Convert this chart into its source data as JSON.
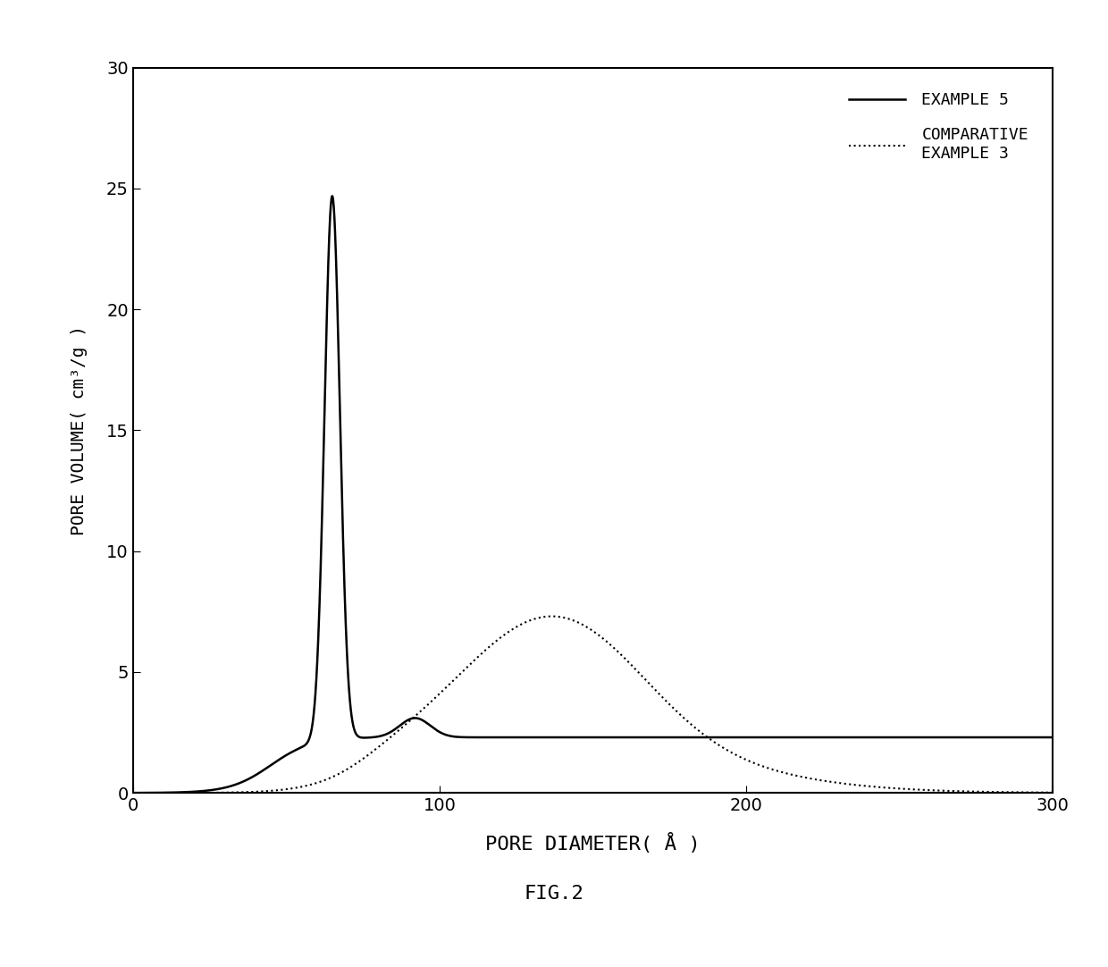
{
  "title": "",
  "xlabel": "PORE DIAMETER( Å )",
  "ylabel": "PORE VOLUME( cm³/g )",
  "xlim": [
    0,
    300
  ],
  "ylim": [
    0,
    30
  ],
  "xticks": [
    0,
    100,
    200,
    300
  ],
  "yticks": [
    0,
    5,
    10,
    15,
    20,
    25,
    30
  ],
  "legend": [
    {
      "label": "EXAMPLE 5",
      "linestyle": "solid"
    },
    {
      "label": "COMPARATIVE\nEXAMPLE 3",
      "linestyle": "dotted"
    }
  ],
  "fig_label": "FIG.2",
  "background_color": "#ffffff",
  "line_color": "#000000"
}
